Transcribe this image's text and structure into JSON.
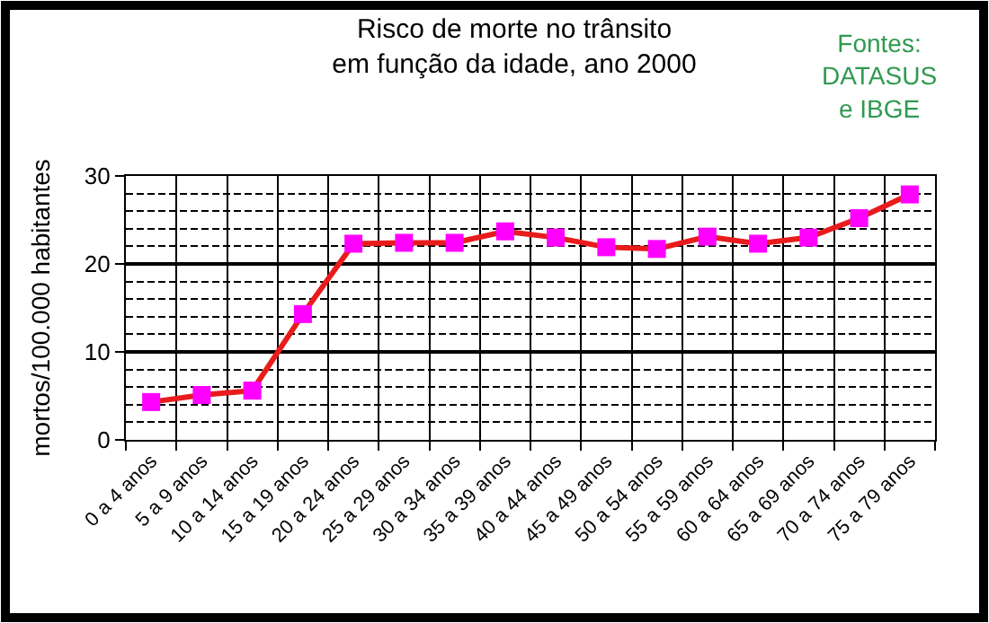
{
  "chart_data": {
    "type": "line",
    "title": "Risco de morte no trânsito\nem função da idade, ano 2000",
    "ylabel": "mortos/100.000 habitantes",
    "annotations": [
      "Fontes:\nDATASUS\ne IBGE"
    ],
    "categories": [
      "0 a 4 anos",
      "5 a 9 anos",
      "10 a 14 anos",
      "15 a 19 anos",
      "20 a 24 anos",
      "25 a 29 anos",
      "30 a 34 anos",
      "35 a 39 anos",
      "40 a 44 anos",
      "45 a 49 anos",
      "50 a 54 anos",
      "55 a 59 anos",
      "60 a 64 anos",
      "65 a 69 anos",
      "70 a 74 anos",
      "75 a 79 anos"
    ],
    "series": [
      {
        "color": "#e81c1c",
        "colors": [
          "#ff00ff",
          "#ff00ff",
          "#ff00ff",
          "#ff00ff",
          "#ff00ff",
          "#ff00ff",
          "#ff00ff",
          "#ff00ff",
          "#ff00ff",
          "#ff00ff",
          "#ff00ff",
          "#ff00ff",
          "#ff00ff",
          "#ff00ff",
          "#ff00ff",
          "#ff00ff"
        ],
        "values": [
          4.3,
          5.1,
          5.6,
          14.3,
          22.3,
          22.4,
          22.4,
          23.7,
          23.0,
          21.9,
          21.7,
          23.1,
          22.3,
          23.0,
          25.2,
          27.9
        ]
      }
    ],
    "ylim": [
      0,
      30
    ],
    "yticks": [
      0,
      10,
      20,
      30
    ],
    "grid": true,
    "marker": "square",
    "line_style": "solid"
  }
}
